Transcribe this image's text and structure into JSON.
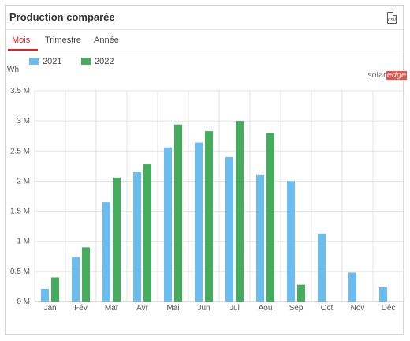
{
  "header": {
    "title": "Production comparée",
    "export_icon": "csv-file-icon",
    "export_label": "CSV"
  },
  "tabs": [
    {
      "label": "Mois",
      "active": true
    },
    {
      "label": "Trimestre",
      "active": false
    },
    {
      "label": "Année",
      "active": false
    }
  ],
  "brand": {
    "solar": "solar",
    "edge": "edge"
  },
  "colors": {
    "accent": "#d7262b",
    "series_2021": "#6bbdf0",
    "series_2022": "#44ac5c"
  },
  "chart_data": {
    "type": "bar",
    "ylabel": "Wh",
    "ylim": [
      0,
      3.5
    ],
    "y_ticks": [
      "0 M",
      "0.5 M",
      "1 M",
      "1.5 M",
      "2 M",
      "2.5 M",
      "3 M",
      "3.5 M"
    ],
    "y_tick_values": [
      0,
      0.5,
      1,
      1.5,
      2,
      2.5,
      3,
      3.5
    ],
    "grid": true,
    "legend_position": "top-left",
    "categories": [
      "Jan",
      "Fév",
      "Mar",
      "Avr",
      "Mai",
      "Jun",
      "Jul",
      "Aoû",
      "Sep",
      "Oct",
      "Nov",
      "Déc"
    ],
    "series": [
      {
        "name": "2021",
        "values": [
          0.21,
          0.74,
          1.65,
          2.15,
          2.56,
          2.64,
          2.4,
          2.1,
          2.0,
          1.13,
          0.48,
          0.24
        ]
      },
      {
        "name": "2022",
        "values": [
          0.4,
          0.9,
          2.06,
          2.28,
          2.94,
          2.83,
          3.0,
          2.8,
          0.28,
          null,
          null,
          null
        ]
      }
    ]
  }
}
